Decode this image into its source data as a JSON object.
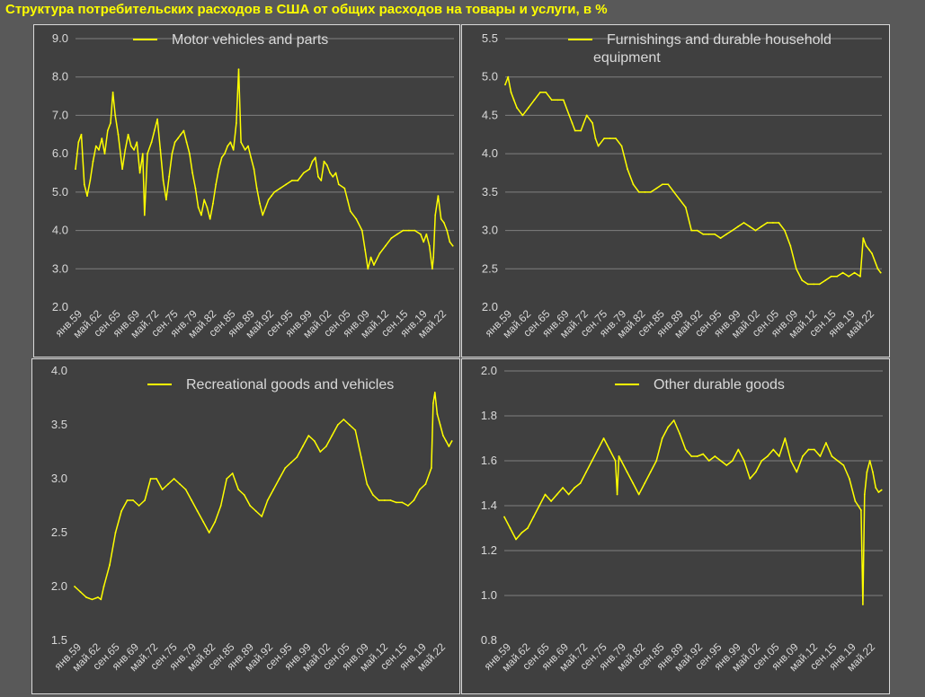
{
  "title": "Структура потребительских расходов в США от общих расходов на товары и услуги, в %",
  "colors": {
    "series": "#ffff00",
    "background": "#595959",
    "panel": "#404040",
    "grid": "#7f7f7f",
    "text": "#d9d9d9"
  },
  "x_labels": [
    "янв.59",
    "май.62",
    "сен.65",
    "янв.69",
    "май.72",
    "сен.75",
    "янв.79",
    "май.82",
    "сен.85",
    "янв.89",
    "май.92",
    "сен.95",
    "янв.99",
    "май.02",
    "сен.05",
    "янв.09",
    "май.12",
    "сен.15",
    "янв.19",
    "май.22"
  ],
  "chart_data": [
    {
      "type": "line",
      "legend": [
        "Motor vehicles and parts"
      ],
      "legend_position": "top-center",
      "grid": true,
      "ylim": [
        2.0,
        9.0
      ],
      "yticks": [
        "2.0",
        "3.0",
        "4.0",
        "5.0",
        "6.0",
        "7.0",
        "8.0",
        "9.0"
      ],
      "x_labels": [
        "янв.59",
        "май.62",
        "сен.65",
        "янв.69",
        "май.72",
        "сен.75",
        "янв.79",
        "май.82",
        "сен.85",
        "янв.89",
        "май.92",
        "сен.95",
        "янв.99",
        "май.02",
        "сен.05",
        "янв.09",
        "май.12",
        "сен.15",
        "янв.19",
        "май.22"
      ],
      "series": [
        {
          "name": "Motor vehicles and parts",
          "x": [
            1959.0,
            1959.5,
            1960.0,
            1960.5,
            1961.0,
            1961.5,
            1962.0,
            1962.5,
            1963.0,
            1963.5,
            1964.0,
            1964.5,
            1965.0,
            1965.4,
            1965.8,
            1966.3,
            1967.0,
            1967.5,
            1968.0,
            1968.5,
            1969.0,
            1969.5,
            1970.0,
            1970.5,
            1970.8,
            1971.3,
            1972.0,
            1972.5,
            1973.0,
            1973.5,
            1974.0,
            1974.5,
            1975.0,
            1975.5,
            1976.0,
            1976.5,
            1977.0,
            1977.5,
            1978.0,
            1978.5,
            1979.0,
            1979.5,
            1980.0,
            1980.5,
            1981.0,
            1981.5,
            1982.0,
            1982.5,
            1983.0,
            1983.5,
            1984.0,
            1984.5,
            1985.0,
            1985.5,
            1986.0,
            1986.5,
            1986.9,
            1987.3,
            1988.0,
            1988.5,
            1989.0,
            1989.5,
            1990.0,
            1990.5,
            1991.0,
            1991.5,
            1992.0,
            1992.5,
            1993.0,
            1994.0,
            1995.0,
            1996.0,
            1997.0,
            1998.0,
            1999.0,
            1999.5,
            2000.0,
            2000.5,
            2001.0,
            2001.5,
            2002.0,
            2002.5,
            2003.0,
            2003.5,
            2004.0,
            2005.0,
            2005.5,
            2006.0,
            2007.0,
            2008.0,
            2008.5,
            2009.0,
            2009.5,
            2010.0,
            2011.0,
            2012.0,
            2013.0,
            2014.0,
            2015.0,
            2016.0,
            2017.0,
            2018.0,
            2018.5,
            2019.0,
            2019.5,
            2020.0,
            2020.2,
            2020.5,
            2021.0,
            2021.5,
            2022.0,
            2022.5,
            2023.0,
            2023.5
          ],
          "values": [
            5.6,
            6.3,
            6.5,
            5.2,
            4.9,
            5.3,
            5.8,
            6.2,
            6.1,
            6.4,
            6.0,
            6.6,
            6.8,
            7.6,
            7.0,
            6.5,
            5.6,
            6.1,
            6.5,
            6.2,
            6.1,
            6.3,
            5.5,
            6.0,
            4.4,
            6.0,
            6.3,
            6.6,
            6.9,
            6.1,
            5.3,
            4.8,
            5.4,
            6.0,
            6.3,
            6.4,
            6.5,
            6.6,
            6.3,
            6.0,
            5.5,
            5.1,
            4.6,
            4.4,
            4.8,
            4.6,
            4.3,
            4.7,
            5.2,
            5.6,
            5.9,
            6.0,
            6.2,
            6.3,
            6.1,
            6.8,
            8.2,
            6.3,
            6.1,
            6.2,
            5.9,
            5.6,
            5.1,
            4.7,
            4.4,
            4.6,
            4.8,
            4.9,
            5.0,
            5.1,
            5.2,
            5.3,
            5.3,
            5.5,
            5.6,
            5.8,
            5.9,
            5.4,
            5.3,
            5.8,
            5.7,
            5.5,
            5.4,
            5.5,
            5.2,
            5.1,
            4.8,
            4.5,
            4.3,
            4.0,
            3.5,
            3.0,
            3.3,
            3.1,
            3.4,
            3.6,
            3.8,
            3.9,
            4.0,
            4.0,
            4.0,
            3.9,
            3.7,
            3.9,
            3.6,
            3.0,
            3.3,
            4.4,
            4.9,
            4.3,
            4.2,
            4.0,
            3.7,
            3.6
          ]
        }
      ]
    },
    {
      "type": "line",
      "legend": [
        "Furnishings and durable household",
        "equipment"
      ],
      "legend_position": "top-center",
      "grid": true,
      "ylim": [
        2.0,
        5.5
      ],
      "yticks": [
        "2.0",
        "2.5",
        "3.0",
        "3.5",
        "4.0",
        "4.5",
        "5.0",
        "5.5"
      ],
      "x_labels": [
        "янв.59",
        "май.62",
        "сен.65",
        "янв.69",
        "май.72",
        "сен.75",
        "янв.79",
        "май.82",
        "сен.85",
        "янв.89",
        "май.92",
        "сен.95",
        "янв.99",
        "май.02",
        "сен.05",
        "янв.09",
        "май.12",
        "сен.15",
        "янв.19",
        "май.22"
      ],
      "series": [
        {
          "name": "Furnishings and durable household equipment",
          "x": [
            1959.0,
            1959.5,
            1960.0,
            1960.5,
            1961.0,
            1962.0,
            1963.0,
            1964.0,
            1965.0,
            1966.0,
            1967.0,
            1968.0,
            1969.0,
            1970.0,
            1970.5,
            1971.0,
            1972.0,
            1973.0,
            1974.0,
            1974.5,
            1975.0,
            1976.0,
            1977.0,
            1978.0,
            1979.0,
            1980.0,
            1981.0,
            1982.0,
            1983.0,
            1984.0,
            1985.0,
            1986.0,
            1987.0,
            1988.0,
            1989.0,
            1990.0,
            1991.0,
            1992.0,
            1993.0,
            1994.0,
            1995.0,
            1996.0,
            1997.0,
            1998.0,
            1999.0,
            2000.0,
            2001.0,
            2002.0,
            2003.0,
            2004.0,
            2005.0,
            2006.0,
            2007.0,
            2008.0,
            2009.0,
            2010.0,
            2011.0,
            2012.0,
            2013.0,
            2014.0,
            2015.0,
            2016.0,
            2017.0,
            2018.0,
            2019.0,
            2020.0,
            2020.5,
            2021.0,
            2021.5,
            2022.0,
            2023.0,
            2023.5
          ],
          "values": [
            4.9,
            5.0,
            4.8,
            4.7,
            4.6,
            4.5,
            4.6,
            4.7,
            4.8,
            4.8,
            4.7,
            4.7,
            4.7,
            4.5,
            4.4,
            4.3,
            4.3,
            4.5,
            4.4,
            4.2,
            4.1,
            4.2,
            4.2,
            4.2,
            4.1,
            3.8,
            3.6,
            3.5,
            3.5,
            3.5,
            3.55,
            3.6,
            3.6,
            3.5,
            3.4,
            3.3,
            3.0,
            3.0,
            2.95,
            2.95,
            2.95,
            2.9,
            2.95,
            3.0,
            3.05,
            3.1,
            3.05,
            3.0,
            3.05,
            3.1,
            3.1,
            3.1,
            3.0,
            2.8,
            2.5,
            2.35,
            2.3,
            2.3,
            2.3,
            2.35,
            2.4,
            2.4,
            2.45,
            2.4,
            2.45,
            2.4,
            2.9,
            2.8,
            2.75,
            2.7,
            2.5,
            2.45
          ]
        }
      ]
    },
    {
      "type": "line",
      "legend": [
        "Recreational goods and vehicles"
      ],
      "legend_position": "top-center",
      "grid": false,
      "ylim": [
        1.5,
        4.0
      ],
      "yticks": [
        "1.5",
        "2.0",
        "2.5",
        "3.0",
        "3.5",
        "4.0"
      ],
      "x_labels": [
        "янв.59",
        "май.62",
        "сен.65",
        "янв.69",
        "май.72",
        "сен.75",
        "янв.79",
        "май.82",
        "сен.85",
        "янв.89",
        "май.92",
        "сен.95",
        "янв.99",
        "май.02",
        "сен.05",
        "янв.09",
        "май.12",
        "сен.15",
        "янв.19",
        "май.22"
      ],
      "series": [
        {
          "name": "Recreational goods and vehicles",
          "x": [
            1959.0,
            1960.0,
            1961.0,
            1962.0,
            1963.0,
            1963.5,
            1964.0,
            1965.0,
            1966.0,
            1967.0,
            1968.0,
            1969.0,
            1970.0,
            1971.0,
            1972.0,
            1973.0,
            1974.0,
            1975.0,
            1976.0,
            1977.0,
            1978.0,
            1979.0,
            1980.0,
            1981.0,
            1982.0,
            1983.0,
            1984.0,
            1985.0,
            1986.0,
            1987.0,
            1988.0,
            1989.0,
            1990.0,
            1991.0,
            1992.0,
            1993.0,
            1994.0,
            1995.0,
            1996.0,
            1997.0,
            1998.0,
            1999.0,
            2000.0,
            2001.0,
            2002.0,
            2003.0,
            2004.0,
            2005.0,
            2006.0,
            2007.0,
            2008.0,
            2009.0,
            2010.0,
            2011.0,
            2012.0,
            2013.0,
            2014.0,
            2015.0,
            2016.0,
            2017.0,
            2018.0,
            2019.0,
            2020.0,
            2020.3,
            2020.6,
            2021.0,
            2021.5,
            2022.0,
            2022.5,
            2023.0,
            2023.5
          ],
          "values": [
            2.0,
            1.95,
            1.9,
            1.88,
            1.9,
            1.88,
            2.0,
            2.2,
            2.5,
            2.7,
            2.8,
            2.8,
            2.75,
            2.8,
            3.0,
            3.0,
            2.9,
            2.95,
            3.0,
            2.95,
            2.9,
            2.8,
            2.7,
            2.6,
            2.5,
            2.6,
            2.75,
            3.0,
            3.05,
            2.9,
            2.85,
            2.75,
            2.7,
            2.65,
            2.8,
            2.9,
            3.0,
            3.1,
            3.15,
            3.2,
            3.3,
            3.4,
            3.35,
            3.25,
            3.3,
            3.4,
            3.5,
            3.55,
            3.5,
            3.45,
            3.2,
            2.95,
            2.85,
            2.8,
            2.8,
            2.8,
            2.78,
            2.78,
            2.75,
            2.8,
            2.9,
            2.95,
            3.1,
            3.7,
            3.8,
            3.6,
            3.5,
            3.4,
            3.35,
            3.3,
            3.35
          ]
        }
      ]
    },
    {
      "type": "line",
      "legend": [
        "Other durable goods"
      ],
      "legend_position": "top-center",
      "grid": true,
      "ylim": [
        0.8,
        2.0
      ],
      "yticks": [
        "0.8",
        "1.0",
        "1.2",
        "1.4",
        "1.6",
        "1.8",
        "2.0"
      ],
      "x_labels": [
        "янв.59",
        "май.62",
        "сен.65",
        "янв.69",
        "май.72",
        "сен.75",
        "янв.79",
        "май.82",
        "сен.85",
        "янв.89",
        "май.92",
        "сен.95",
        "янв.99",
        "май.02",
        "сен.05",
        "янв.09",
        "май.12",
        "сен.15",
        "янв.19",
        "май.22"
      ],
      "series": [
        {
          "name": "Other durable goods",
          "x": [
            1959.0,
            1960.0,
            1961.0,
            1962.0,
            1963.0,
            1964.0,
            1965.0,
            1966.0,
            1967.0,
            1968.0,
            1969.0,
            1970.0,
            1971.0,
            1972.0,
            1973.0,
            1974.0,
            1975.0,
            1976.0,
            1977.0,
            1978.0,
            1978.3,
            1978.6,
            1979.0,
            1980.0,
            1981.0,
            1982.0,
            1983.0,
            1984.0,
            1985.0,
            1986.0,
            1987.0,
            1988.0,
            1989.0,
            1990.0,
            1991.0,
            1992.0,
            1993.0,
            1994.0,
            1995.0,
            1996.0,
            1997.0,
            1998.0,
            1999.0,
            2000.0,
            2001.0,
            2002.0,
            2003.0,
            2004.0,
            2005.0,
            2006.0,
            2007.0,
            2008.0,
            2009.0,
            2010.0,
            2011.0,
            2012.0,
            2013.0,
            2014.0,
            2015.0,
            2016.0,
            2017.0,
            2018.0,
            2019.0,
            2019.5,
            2020.0,
            2020.3,
            2020.6,
            2021.0,
            2021.5,
            2022.0,
            2022.5,
            2023.0,
            2023.5
          ],
          "values": [
            1.35,
            1.3,
            1.25,
            1.28,
            1.3,
            1.35,
            1.4,
            1.45,
            1.42,
            1.45,
            1.48,
            1.45,
            1.48,
            1.5,
            1.55,
            1.6,
            1.65,
            1.7,
            1.65,
            1.6,
            1.45,
            1.62,
            1.6,
            1.55,
            1.5,
            1.45,
            1.5,
            1.55,
            1.6,
            1.7,
            1.75,
            1.78,
            1.72,
            1.65,
            1.62,
            1.62,
            1.63,
            1.6,
            1.62,
            1.6,
            1.58,
            1.6,
            1.65,
            1.6,
            1.52,
            1.55,
            1.6,
            1.62,
            1.65,
            1.62,
            1.7,
            1.6,
            1.55,
            1.62,
            1.65,
            1.65,
            1.62,
            1.68,
            1.62,
            1.6,
            1.58,
            1.52,
            1.42,
            1.4,
            1.38,
            0.96,
            1.45,
            1.55,
            1.6,
            1.55,
            1.48,
            1.46,
            1.47
          ]
        }
      ]
    }
  ]
}
